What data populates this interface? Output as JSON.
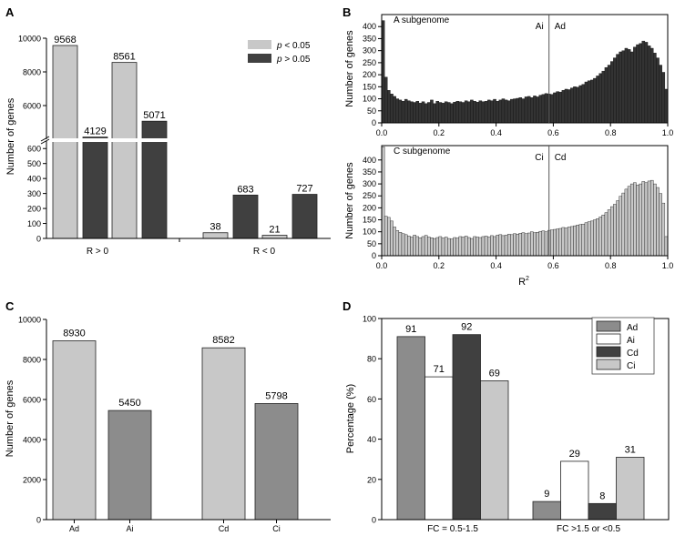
{
  "chart_data": [
    {
      "panel": "A",
      "type": "bar",
      "ylabel": "Number of genes",
      "axis_break": {
        "lower": [
          0,
          650
        ],
        "upper": [
          4000,
          10000
        ]
      },
      "lower_ticks": [
        0,
        100,
        200,
        300,
        400,
        500,
        600
      ],
      "upper_ticks": [
        6000,
        8000,
        10000
      ],
      "legend": [
        {
          "label_prefix": "p",
          "label_suffix": " < 0.05",
          "color": "#c8c8c8"
        },
        {
          "label_prefix": "p",
          "label_suffix": " > 0.05",
          "color": "#404040"
        }
      ],
      "groups": [
        {
          "label": "R > 0",
          "bars": [
            {
              "value": 9568,
              "label": "9568",
              "sig": "lt"
            },
            {
              "value": 4129,
              "label": "4129",
              "sig": "gt"
            },
            {
              "value": 8561,
              "label": "8561",
              "sig": "lt"
            },
            {
              "value": 5071,
              "label": "5071",
              "sig": "gt"
            }
          ]
        },
        {
          "label": "R < 0",
          "bars": [
            {
              "value": 38,
              "label": "38",
              "sig": "lt"
            },
            {
              "value": 683,
              "label": "683",
              "sig": "gt"
            },
            {
              "value": 21,
              "label": "21",
              "sig": "lt"
            },
            {
              "value": 727,
              "label": "727",
              "sig": "gt"
            }
          ]
        }
      ]
    },
    {
      "panel": "B",
      "type": "histogram",
      "xlabel": "R",
      "xlabel_sup": "2",
      "x_ticks": [
        "0.0",
        "0.2",
        "0.4",
        "0.6",
        "0.8",
        "1.0"
      ],
      "plots": [
        {
          "title": "A subgenome",
          "ylabel": "Number of genes",
          "ylim": [
            0,
            450
          ],
          "y_ticks": [
            0,
            50,
            100,
            150,
            200,
            250,
            300,
            350,
            400
          ],
          "divider": 0.585,
          "left_label": "Ai",
          "right_label": "Ad",
          "bar_color": "#333333",
          "values": [
            425,
            190,
            135,
            120,
            110,
            100,
            95,
            90,
            98,
            92,
            88,
            85,
            90,
            82,
            88,
            80,
            85,
            95,
            80,
            90,
            85,
            82,
            88,
            85,
            80,
            86,
            90,
            88,
            85,
            92,
            88,
            95,
            90,
            86,
            92,
            88,
            90,
            95,
            92,
            98,
            90,
            95,
            100,
            95,
            92,
            98,
            100,
            102,
            105,
            100,
            108,
            110,
            105,
            112,
            108,
            115,
            118,
            122,
            120,
            118,
            125,
            130,
            128,
            135,
            140,
            138,
            145,
            150,
            148,
            155,
            160,
            170,
            175,
            178,
            185,
            195,
            205,
            215,
            230,
            240,
            255,
            270,
            285,
            295,
            300,
            310,
            305,
            295,
            315,
            325,
            330,
            340,
            335,
            320,
            310,
            290,
            270,
            240,
            210,
            140
          ]
        },
        {
          "title": "C subgenome",
          "ylabel": "Number of genes",
          "ylim": [
            0,
            460
          ],
          "y_ticks": [
            0,
            50,
            100,
            150,
            200,
            250,
            300,
            350,
            400
          ],
          "divider": 0.585,
          "left_label": "Ci",
          "right_label": "Cd",
          "bar_color": "#c8c8c8",
          "values": [
            455,
            165,
            160,
            145,
            120,
            105,
            98,
            92,
            88,
            82,
            78,
            86,
            80,
            75,
            80,
            85,
            78,
            75,
            72,
            76,
            80,
            74,
            78,
            72,
            70,
            76,
            74,
            80,
            78,
            82,
            76,
            72,
            80,
            78,
            76,
            80,
            82,
            78,
            84,
            80,
            86,
            88,
            84,
            86,
            90,
            88,
            92,
            90,
            94,
            96,
            92,
            95,
            100,
            96,
            98,
            102,
            104,
            100,
            106,
            108,
            110,
            112,
            114,
            118,
            116,
            120,
            122,
            125,
            128,
            130,
            132,
            138,
            142,
            145,
            150,
            155,
            162,
            170,
            180,
            192,
            205,
            215,
            230,
            248,
            262,
            278,
            290,
            300,
            305,
            295,
            300,
            310,
            305,
            312,
            315,
            300,
            285,
            260,
            220,
            80
          ]
        }
      ]
    },
    {
      "panel": "C",
      "type": "bar",
      "ylabel": "Number of genes",
      "ylim": [
        0,
        10000
      ],
      "y_ticks": [
        0,
        2000,
        4000,
        6000,
        8000,
        10000
      ],
      "bars": [
        {
          "category": "Ad",
          "value": 8930,
          "label": "8930",
          "color": "#c8c8c8"
        },
        {
          "category": "Ai",
          "value": 5450,
          "label": "5450",
          "color": "#8c8c8c"
        },
        {
          "category": "Cd",
          "value": 8582,
          "label": "8582",
          "color": "#c8c8c8"
        },
        {
          "category": "Ci",
          "value": 5798,
          "label": "5798",
          "color": "#8c8c8c"
        }
      ]
    },
    {
      "panel": "D",
      "type": "bar",
      "ylabel": "Percentage (%)",
      "ylim": [
        0,
        100
      ],
      "y_ticks": [
        0,
        20,
        40,
        60,
        80,
        100
      ],
      "legend": [
        {
          "label": "Ad",
          "color": "#8c8c8c"
        },
        {
          "label": "Ai",
          "color": "#ffffff"
        },
        {
          "label": "Cd",
          "color": "#404040"
        },
        {
          "label": "Ci",
          "color": "#c8c8c8"
        }
      ],
      "groups": [
        {
          "label": "FC = 0.5-1.5",
          "values": [
            91,
            71,
            92,
            69
          ],
          "labels": [
            "91",
            "71",
            "92",
            "69"
          ]
        },
        {
          "label": "FC >1.5 or <0.5",
          "values": [
            9,
            29,
            8,
            31
          ],
          "labels": [
            "9",
            "29",
            "8",
            "31"
          ]
        }
      ]
    }
  ]
}
